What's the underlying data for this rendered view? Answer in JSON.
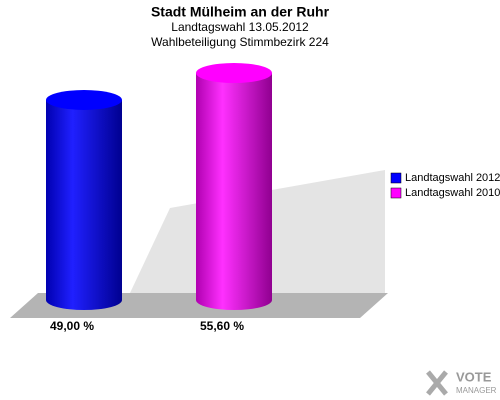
{
  "chart_data": {
    "type": "bar3d",
    "title": "Stadt Mülheim an der Ruhr",
    "subtitles": [
      "Landtagswahl 13.05.2012",
      "Wahlbeteiligung Stimmbezirk 224"
    ],
    "series": [
      {
        "name": "Landtagswahl 2012",
        "color": "#0000ff",
        "values": [
          49
        ],
        "value_labels": [
          "49,00 %"
        ]
      },
      {
        "name": "Landtagswahl 2010",
        "color": "#ff00ff",
        "values": [
          55.6
        ],
        "value_labels": [
          "55,60 %"
        ]
      }
    ],
    "logo": [
      "VOTE",
      "MANAGER"
    ]
  }
}
